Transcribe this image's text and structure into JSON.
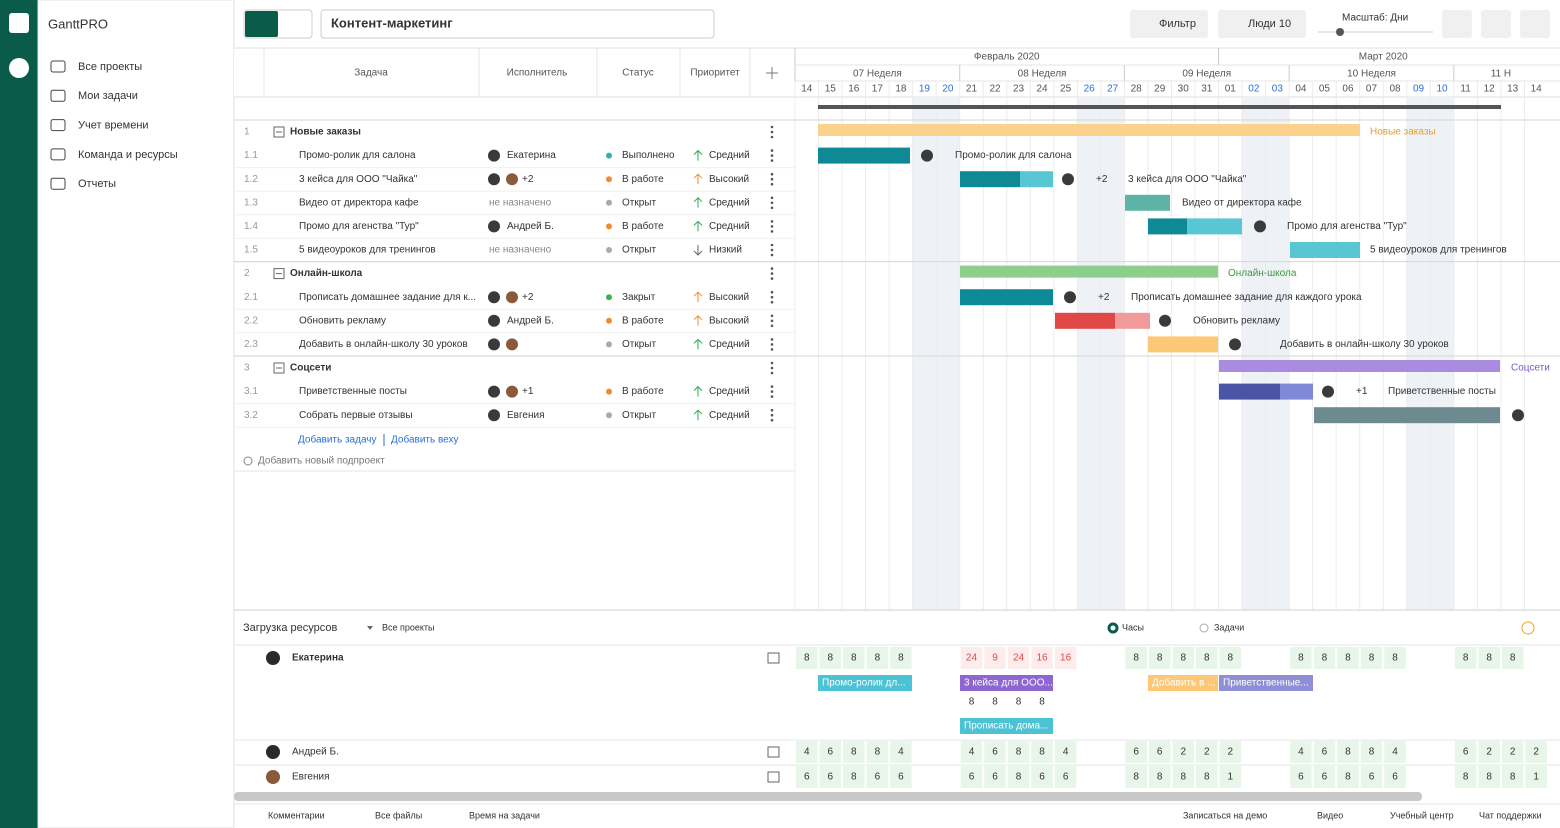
{
  "app": {
    "name": "GanttPRO"
  },
  "nav": [
    "Все проекты",
    "Мои задачи",
    "Учет времени",
    "Команда и ресурсы",
    "Отчеты"
  ],
  "toolbar": {
    "project": "Контент-маркетинг",
    "filter": "Фильтр",
    "people": "Люди 10",
    "scale": "Масштаб: Дни"
  },
  "table": {
    "columns": [
      "Задача",
      "Исполнитель",
      "Статус",
      "Приоритет"
    ],
    "rows": [
      {
        "num": "1",
        "name": "Новые заказы",
        "group": true
      },
      {
        "num": "1.1",
        "name": "Промо-ролик для салона",
        "assignee": "Екатерина",
        "status": "Выполнено",
        "priority": "Средний"
      },
      {
        "num": "1.2",
        "name": "3 кейса для ООО \"Чайка\"",
        "assignee_extra": "+2",
        "status": "В работе",
        "priority": "Высокий"
      },
      {
        "num": "1.3",
        "name": "Видео от директора кафе",
        "assignee": "не назначено",
        "status": "Открыт",
        "priority": "Средний"
      },
      {
        "num": "1.4",
        "name": "Промо для агенства \"Тур\"",
        "assignee": "Андрей Б.",
        "status": "В работе",
        "priority": "Средний"
      },
      {
        "num": "1.5",
        "name": "5 видеоуроков для тренингов",
        "assignee": "не назначено",
        "status": "Открыт",
        "priority": "Низкий"
      },
      {
        "num": "2",
        "name": "Онлайн-школа",
        "group": true
      },
      {
        "num": "2.1",
        "name": "Прописать домашнее задание для к...",
        "bar_label": "Прописать домашнее задание для каждого урока",
        "assignee_extra": "+2",
        "status": "Закрыт",
        "priority": "Высокий"
      },
      {
        "num": "2.2",
        "name": "Обновить рекламу",
        "assignee": "Андрей Б.",
        "status": "В работе",
        "priority": "Высокий"
      },
      {
        "num": "2.3",
        "name": "Добавить в онлайн-школу 30 уроков",
        "status": "Открыт",
        "priority": "Средний"
      },
      {
        "num": "3",
        "name": "Соцсети",
        "group": true
      },
      {
        "num": "3.1",
        "name": "Приветственные посты",
        "assignee_extra": "+1",
        "status": "В работе",
        "priority": "Средний"
      },
      {
        "num": "3.2",
        "name": "Собрать первые отзывы",
        "assignee": "Евгения",
        "status": "Открыт",
        "priority": "Средний"
      }
    ],
    "add_task": "Добавить задачу",
    "add_milestone": "Добавить веху",
    "add_subproject": "Добавить новый подпроект"
  },
  "timeline": {
    "months": [
      "Февраль 2020",
      "Март 2020"
    ],
    "weeks": [
      "07 Неделя",
      "08 Неделя",
      "09 Неделя",
      "10 Неделя",
      "11 Н"
    ],
    "days": [
      "14",
      "15",
      "16",
      "17",
      "18",
      "19",
      "20",
      "21",
      "22",
      "23",
      "24",
      "25",
      "26",
      "27",
      "28",
      "29",
      "30",
      "31",
      "01",
      "02",
      "03",
      "04",
      "05",
      "06",
      "07",
      "08",
      "09",
      "10",
      "11",
      "12",
      "13",
      "14"
    ]
  },
  "resources": {
    "title": "Загрузка ресурсов",
    "filter": "Все проекты",
    "modes": [
      "Часы",
      "Задачи"
    ],
    "people": [
      {
        "name": "Екатерина",
        "hours": [
          8,
          8,
          8,
          8,
          8,
          null,
          null,
          24,
          9,
          24,
          16,
          16,
          null,
          null,
          8,
          8,
          8,
          8,
          8,
          null,
          null,
          8,
          8,
          8,
          8,
          8,
          null,
          null,
          8,
          8,
          8,
          null
        ],
        "tasks": [
          "Промо-ролик дл...",
          "3 кейса для ООО...",
          "Добавить в ...",
          "Приветственные...",
          "Прописать дома..."
        ],
        "task_hours": [
          8,
          8,
          8,
          8
        ]
      },
      {
        "name": "Андрей Б.",
        "hours": [
          4,
          6,
          8,
          8,
          4,
          null,
          null,
          4,
          6,
          8,
          8,
          4,
          null,
          null,
          6,
          6,
          2,
          2,
          2,
          null,
          null,
          4,
          6,
          8,
          8,
          4,
          null,
          null,
          6,
          2,
          2,
          2
        ]
      },
      {
        "name": "Евгения",
        "hours": [
          6,
          6,
          8,
          6,
          6,
          null,
          null,
          6,
          6,
          8,
          6,
          6,
          null,
          null,
          8,
          8,
          8,
          8,
          1,
          null,
          null,
          6,
          6,
          8,
          6,
          6,
          null,
          null,
          8,
          8,
          8,
          1
        ]
      }
    ]
  },
  "footer": {
    "left": [
      "Комментарии",
      "Все файлы",
      "Время на задачи"
    ],
    "right": [
      "Записаться на демо",
      "Видео",
      "Учебный центр",
      "Чат поддержки"
    ]
  }
}
